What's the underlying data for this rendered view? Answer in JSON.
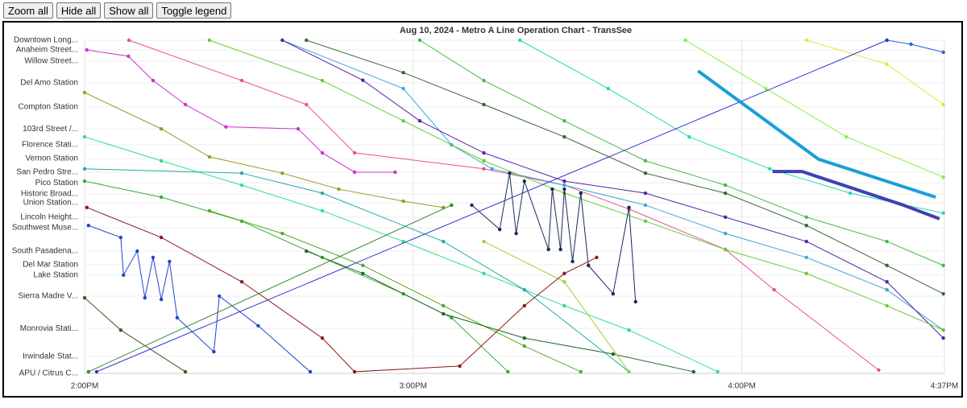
{
  "buttons": [
    "Zoom all",
    "Hide all",
    "Show all",
    "Toggle legend"
  ],
  "chart_data": {
    "type": "line",
    "title": "Aug 10, 2024 - Metro A Line Operation Chart - TransSee",
    "xlim": [
      840,
      997
    ],
    "xticks": [
      {
        "value": 840,
        "label": "2:00PM"
      },
      {
        "value": 900,
        "label": "3:00PM"
      },
      {
        "value": 960,
        "label": "4:00PM"
      },
      {
        "value": 997,
        "label": "4:37PM"
      }
    ],
    "ylim": [
      0,
      100
    ],
    "yticks": [
      {
        "value": 100,
        "label": "Downtown Long..."
      },
      {
        "value": 97.1,
        "label": "Anaheim Street..."
      },
      {
        "value": 93.7,
        "label": "Willow Street..."
      },
      {
        "value": 87.2,
        "label": "Del Amo Station"
      },
      {
        "value": 80,
        "label": "Compton Station"
      },
      {
        "value": 73.4,
        "label": "103rd Street /..."
      },
      {
        "value": 68.6,
        "label": "Florence Stati..."
      },
      {
        "value": 64.5,
        "label": "Vernon Station"
      },
      {
        "value": 60.4,
        "label": "San Pedro Stre..."
      },
      {
        "value": 57.2,
        "label": "Pico Station"
      },
      {
        "value": 53.9,
        "label": "Historic Broad..."
      },
      {
        "value": 51.2,
        "label": "Union Station..."
      },
      {
        "value": 46.9,
        "label": "Lincoln Height..."
      },
      {
        "value": 43.7,
        "label": "Southwest Muse..."
      },
      {
        "value": 36.7,
        "label": "South Pasadena..."
      },
      {
        "value": 32.6,
        "label": "Del Mar Station"
      },
      {
        "value": 29.5,
        "label": "Lake Station"
      },
      {
        "value": 23.2,
        "label": "Sierra Madre V..."
      },
      {
        "value": 13.5,
        "label": "Monrovia Stati..."
      },
      {
        "value": 5.1,
        "label": "Irwindale Stat..."
      },
      {
        "value": 0,
        "label": "APU / Citrus C..."
      }
    ],
    "grid": true,
    "series": [
      {
        "color": "#cc33cc",
        "width": 1,
        "x": [
          840.4,
          848,
          852.5,
          858.4,
          865.8,
          879,
          883.4,
          889.3,
          896.7
        ],
        "values": [
          97.1,
          95.2,
          87.9,
          80.7,
          74,
          73.4,
          66.2,
          60.4,
          60.4
        ]
      },
      {
        "color": "#e8508a",
        "width": 1,
        "x": [
          848.1,
          868.7,
          880.5,
          889.3,
          912.9,
          927.6,
          939.4,
          957,
          965.9,
          985
        ],
        "values": [
          100,
          87.9,
          80.7,
          66.2,
          61.4,
          56.5,
          49.3,
          37.2,
          25.1,
          1
        ]
      },
      {
        "color": "#3da5d9",
        "width": 1,
        "x": [
          876.1,
          898.2,
          907,
          914.4,
          927.6,
          942.4,
          957,
          971.8,
          986.5,
          996.8
        ],
        "values": [
          100,
          85.5,
          68.6,
          61.4,
          56.5,
          50.5,
          42,
          34.8,
          25.1,
          13
        ]
      },
      {
        "color": "#5522aa",
        "width": 1,
        "x": [
          876.1,
          890.8,
          901.2,
          912.9,
          927.6,
          942.4,
          957,
          971.8,
          986.5,
          996.8
        ],
        "values": [
          100,
          88,
          75.8,
          66.2,
          57.7,
          54.1,
          46.9,
          39.6,
          27.5,
          10.6
        ]
      },
      {
        "color": "#336633",
        "width": 1,
        "x": [
          880.5,
          898.2,
          912.9,
          927.6,
          942.4,
          957,
          971.8,
          986.5,
          996.8
        ],
        "values": [
          100,
          90.3,
          80.7,
          71,
          60.1,
          54.1,
          44.4,
          32.4,
          23.9
        ]
      },
      {
        "color": "#999922",
        "width": 1,
        "x": [
          840,
          854,
          862.8,
          876.1,
          886.4,
          898.2,
          905.5
        ],
        "values": [
          84.3,
          73.4,
          65,
          60.1,
          55.3,
          51.7,
          49.8
        ]
      },
      {
        "color": "#33dd88",
        "width": 1,
        "x": [
          840,
          854,
          868.7,
          883.4,
          898.2,
          912.9,
          927.6,
          939.4,
          955.6
        ],
        "values": [
          71,
          63.8,
          56.5,
          48.8,
          39.6,
          30,
          20.3,
          13,
          0.5
        ]
      },
      {
        "color": "#33aa33",
        "width": 1,
        "x": [
          840,
          854,
          868.7,
          883.4,
          898.2,
          907,
          917.3
        ],
        "values": [
          57.7,
          52.9,
          45.7,
          34.8,
          23.9,
          16.7,
          0.5
        ]
      },
      {
        "color": "#445522",
        "width": 1,
        "x": [
          840,
          846.6,
          858.4
        ],
        "values": [
          22.7,
          13,
          0.5
        ]
      },
      {
        "color": "#22aaaa",
        "width": 1,
        "x": [
          840,
          868.7,
          883.4,
          905.5,
          920.3,
          939.4
        ],
        "values": [
          61.4,
          60.1,
          54.1,
          39.6,
          25.1,
          0.5
        ]
      },
      {
        "color": "#66cc33",
        "width": 1,
        "x": [
          862.8,
          883.4,
          898.2,
          912.9,
          927.6,
          942.4,
          957,
          971.8,
          986.5,
          996.8
        ],
        "values": [
          100,
          87.9,
          75.8,
          63.8,
          54.1,
          45.7,
          37.2,
          30,
          20.3,
          13
        ]
      },
      {
        "color": "#44bb44",
        "width": 1,
        "x": [
          901.2,
          912.9,
          927.6,
          942.4,
          957,
          971.8,
          986.5,
          996.8
        ],
        "values": [
          100,
          87.9,
          75.8,
          63.8,
          56.5,
          46.9,
          39.6,
          32.4
        ]
      },
      {
        "color": "#22ddaa",
        "width": 1,
        "x": [
          919.5,
          935.6,
          950.4,
          965.1,
          979.8,
          996.8
        ],
        "values": [
          100,
          85.5,
          71,
          61.4,
          54.1,
          48.1
        ]
      },
      {
        "color": "#88ee44",
        "width": 1,
        "x": [
          949.7,
          964.4,
          979.1,
          996.8
        ],
        "values": [
          100,
          85.5,
          71,
          58.9
        ]
      },
      {
        "color": "#e6e633",
        "width": 1,
        "x": [
          971.8,
          986.5,
          996.8
        ],
        "values": [
          100,
          92.8,
          80.7
        ]
      },
      {
        "color": "#2266dd",
        "width": 1,
        "x": [
          986.5,
          990.9,
          996.8
        ],
        "values": [
          100,
          98.8,
          96.4
        ]
      },
      {
        "color": "#55aa22",
        "width": 1,
        "x": [
          862.8,
          876.1,
          890.8,
          905.5,
          920.3,
          930.6
        ],
        "values": [
          48.8,
          42,
          32.4,
          20.3,
          8.2,
          0.5
        ]
      },
      {
        "color": "#226622",
        "width": 1,
        "x": [
          880.5,
          890.8,
          905.5,
          920.3,
          936.5,
          951.2
        ],
        "values": [
          36.7,
          30,
          17.9,
          10.6,
          5.8,
          0.5
        ]
      },
      {
        "color": "#aacc33",
        "width": 1,
        "x": [
          912.9,
          927.6,
          939.4
        ],
        "values": [
          39.6,
          27.5,
          0.5
        ]
      },
      {
        "color": "#8b1a1a",
        "width": 1,
        "x": [
          840.4,
          854,
          868.7,
          883.4,
          889.3,
          908.5,
          920.3,
          927.6,
          933.5
        ],
        "values": [
          49.8,
          40.8,
          27.5,
          10.6,
          0.5,
          2.2,
          20.3,
          30,
          34.8
        ]
      },
      {
        "color": "#2244cc",
        "width": 1,
        "x": [
          840.7,
          846.6,
          847.1,
          849.6,
          851,
          852.5,
          854,
          855.5,
          856.9,
          863.6,
          864.6,
          871.7,
          881.2
        ],
        "values": [
          44.4,
          40.8,
          29.5,
          36.7,
          22.7,
          34.8,
          22.2,
          33.6,
          16.7,
          6.5,
          23.2,
          14.3,
          0.5
        ]
      },
      {
        "color": "#1a2a5a",
        "width": 1,
        "x": [
          910.7,
          915.8,
          917.6,
          918.8,
          920.3,
          924.7,
          925.4,
          926.9,
          927.6,
          929.1,
          930.6,
          932,
          936.5,
          939.4,
          940.6
        ],
        "values": [
          50.5,
          43.2,
          60.1,
          42,
          57.7,
          37.2,
          55.3,
          37.2,
          55.3,
          33.6,
          54.1,
          32.4,
          23.9,
          49.8,
          21.5
        ]
      },
      {
        "color": "#3333cc",
        "width": 1,
        "x": [
          842.2,
          986.5
        ],
        "values": [
          0.5,
          100
        ]
      },
      {
        "color": "#338833",
        "width": 1,
        "x": [
          840.7,
          907
        ],
        "values": [
          0.5,
          50.5
        ]
      },
      {
        "color": "#1a9fd8",
        "width": 4,
        "x": [
          952,
          974,
          995.4
        ],
        "values": [
          90.8,
          64.3,
          52.9
        ]
      },
      {
        "color": "#4040b0",
        "width": 4,
        "x": [
          965.6,
          971,
          989.5,
          996.1
        ],
        "values": [
          60.6,
          60.6,
          50.5,
          46.4
        ]
      }
    ]
  }
}
